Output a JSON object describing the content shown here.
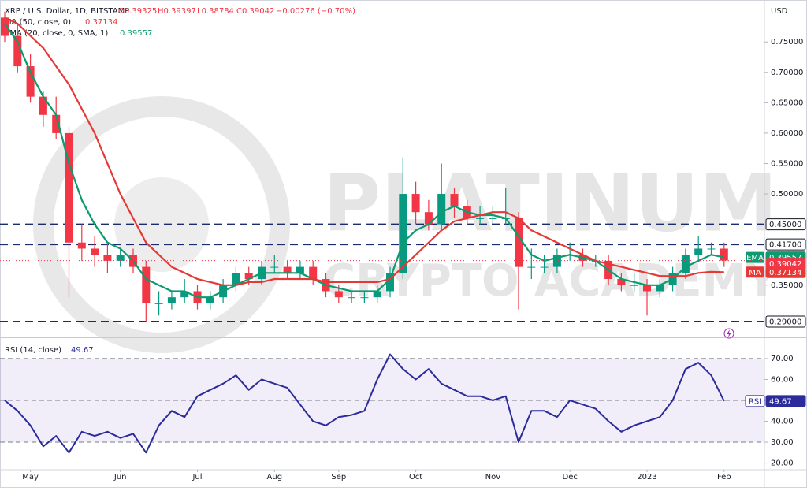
{
  "chart_data": [
    {
      "type": "candlestick",
      "title": "XRP / U.S. Dollar, 1D, BITSTAMP",
      "ohlc_legend": [
        "O0.39325",
        "H0.39397",
        "L0.38784",
        "C0.39042",
        "−0.00276 (−0.70%)"
      ],
      "currency": "USD",
      "watermark": [
        "PLATINUM",
        "CRYPTO ACADEMY"
      ],
      "categories": [
        null,
        null,
        "May",
        null,
        null,
        null,
        null,
        null,
        null,
        "Jun",
        null,
        null,
        null,
        null,
        null,
        "Jul",
        null,
        null,
        null,
        null,
        null,
        "Aug",
        null,
        null,
        null,
        null,
        "Sep",
        null,
        null,
        null,
        null,
        null,
        "Oct",
        null,
        null,
        null,
        null,
        null,
        "Nov",
        null,
        null,
        null,
        null,
        null,
        "Dec",
        null,
        null,
        null,
        null,
        null,
        "2023",
        null,
        null,
        null,
        null,
        null,
        "Feb"
      ],
      "open": [
        0.79,
        0.76,
        0.71,
        0.66,
        0.63,
        0.6,
        0.42,
        0.41,
        0.4,
        0.39,
        0.4,
        0.38,
        0.32,
        0.32,
        0.33,
        0.34,
        0.32,
        0.33,
        0.35,
        0.37,
        0.36,
        0.38,
        0.38,
        0.37,
        0.38,
        0.36,
        0.34,
        0.33,
        0.33,
        0.33,
        0.34,
        0.37,
        0.5,
        0.47,
        0.45,
        0.5,
        0.48,
        0.46,
        0.46,
        0.46,
        0.46,
        0.38,
        0.38,
        0.38,
        0.4,
        0.4,
        0.39,
        0.39,
        0.36,
        0.35,
        0.35,
        0.34,
        0.35,
        0.37,
        0.4,
        0.41,
        0.41
      ],
      "high": [
        0.8,
        0.78,
        0.73,
        0.67,
        0.66,
        0.61,
        0.45,
        0.43,
        0.42,
        0.41,
        0.41,
        0.39,
        0.34,
        0.34,
        0.36,
        0.35,
        0.34,
        0.36,
        0.38,
        0.38,
        0.39,
        0.4,
        0.39,
        0.39,
        0.39,
        0.37,
        0.35,
        0.34,
        0.34,
        0.35,
        0.38,
        0.56,
        0.52,
        0.49,
        0.55,
        0.51,
        0.49,
        0.48,
        0.48,
        0.51,
        0.47,
        0.41,
        0.4,
        0.41,
        0.42,
        0.41,
        0.4,
        0.4,
        0.37,
        0.37,
        0.36,
        0.36,
        0.38,
        0.41,
        0.43,
        0.42,
        0.42
      ],
      "low": [
        0.75,
        0.7,
        0.65,
        0.61,
        0.59,
        0.33,
        0.39,
        0.38,
        0.37,
        0.38,
        0.37,
        0.29,
        0.3,
        0.31,
        0.32,
        0.31,
        0.31,
        0.32,
        0.34,
        0.35,
        0.35,
        0.37,
        0.36,
        0.36,
        0.35,
        0.33,
        0.32,
        0.32,
        0.32,
        0.32,
        0.33,
        0.36,
        0.45,
        0.44,
        0.44,
        0.46,
        0.45,
        0.45,
        0.45,
        0.45,
        0.31,
        0.36,
        0.37,
        0.37,
        0.39,
        0.38,
        0.38,
        0.35,
        0.34,
        0.34,
        0.3,
        0.33,
        0.34,
        0.36,
        0.39,
        0.4,
        0.38
      ],
      "close": [
        0.76,
        0.71,
        0.66,
        0.63,
        0.6,
        0.42,
        0.41,
        0.4,
        0.39,
        0.4,
        0.38,
        0.32,
        0.32,
        0.33,
        0.34,
        0.32,
        0.33,
        0.35,
        0.37,
        0.36,
        0.38,
        0.38,
        0.37,
        0.38,
        0.36,
        0.34,
        0.33,
        0.33,
        0.33,
        0.34,
        0.37,
        0.5,
        0.47,
        0.45,
        0.5,
        0.48,
        0.46,
        0.46,
        0.46,
        0.46,
        0.38,
        0.38,
        0.38,
        0.4,
        0.4,
        0.39,
        0.39,
        0.36,
        0.35,
        0.35,
        0.34,
        0.35,
        0.37,
        0.4,
        0.41,
        0.41,
        0.39042
      ],
      "last_label": "0.39042",
      "up_color": "#089981",
      "down_color": "#f23645",
      "series": [
        {
          "name": "EMA",
          "legend": "EMA (20, close, 0, SMA, 1)",
          "color": "#0b9b6f",
          "last_label": "0.39557",
          "values": [
            0.78,
            0.75,
            0.7,
            0.66,
            0.63,
            0.55,
            0.49,
            0.45,
            0.42,
            0.41,
            0.39,
            0.36,
            0.35,
            0.34,
            0.34,
            0.33,
            0.33,
            0.34,
            0.35,
            0.36,
            0.37,
            0.37,
            0.37,
            0.37,
            0.36,
            0.35,
            0.345,
            0.34,
            0.34,
            0.34,
            0.36,
            0.42,
            0.44,
            0.45,
            0.47,
            0.48,
            0.47,
            0.465,
            0.465,
            0.46,
            0.43,
            0.4,
            0.39,
            0.395,
            0.4,
            0.395,
            0.39,
            0.375,
            0.36,
            0.355,
            0.35,
            0.35,
            0.36,
            0.38,
            0.39,
            0.4,
            0.39557
          ]
        },
        {
          "name": "MA",
          "legend": "MA (50, close, 0)",
          "color": "#e53935",
          "last_label": "0.37134",
          "values": [
            0.79,
            0.78,
            0.76,
            0.74,
            0.71,
            0.68,
            0.64,
            0.6,
            0.55,
            0.5,
            0.46,
            0.42,
            0.4,
            0.38,
            0.37,
            0.36,
            0.355,
            0.35,
            0.35,
            0.355,
            0.355,
            0.36,
            0.36,
            0.36,
            0.36,
            0.355,
            0.355,
            0.355,
            0.355,
            0.355,
            0.36,
            0.38,
            0.4,
            0.42,
            0.44,
            0.455,
            0.46,
            0.465,
            0.47,
            0.47,
            0.46,
            0.44,
            0.43,
            0.42,
            0.41,
            0.4,
            0.39,
            0.385,
            0.38,
            0.375,
            0.37,
            0.365,
            0.365,
            0.365,
            0.37,
            0.372,
            0.37134
          ]
        }
      ],
      "levels": [
        {
          "value": 0.45,
          "label": "0.45000"
        },
        {
          "value": 0.417,
          "label": "0.41700"
        },
        {
          "value": 0.29,
          "label": "0.29000"
        }
      ],
      "level_color": "#1c2b6e",
      "ylim": [
        0.268,
        0.819
      ],
      "yticks": [
        {
          "value": 0.75,
          "label": "0.75000"
        },
        {
          "value": 0.7,
          "label": "0.70000"
        },
        {
          "value": 0.65,
          "label": "0.65000"
        },
        {
          "value": 0.6,
          "label": "0.60000"
        },
        {
          "value": 0.55,
          "label": "0.55000"
        },
        {
          "value": 0.5,
          "label": "0.50000"
        },
        {
          "value": 0.35,
          "label": "0.35000"
        }
      ]
    },
    {
      "type": "line",
      "title": "RSI (14, close)",
      "series": [
        {
          "name": "RSI",
          "color": "#2b2b9c",
          "last_label": "49.67",
          "values": [
            50,
            45,
            38,
            28,
            33,
            25,
            35,
            33,
            35,
            32,
            34,
            25,
            38,
            45,
            42,
            52,
            55,
            58,
            62,
            55,
            60,
            58,
            56,
            48,
            40,
            38,
            42,
            43,
            45,
            60,
            72,
            65,
            60,
            65,
            58,
            55,
            52,
            52,
            50,
            52,
            30,
            45,
            45,
            42,
            50,
            48,
            46,
            40,
            35,
            38,
            40,
            42,
            50,
            65,
            68,
            62,
            49.67
          ]
        }
      ],
      "band": [
        30,
        70
      ],
      "midline": 50,
      "band_color": "#7e57c2",
      "ylim": [
        17.2,
        79.4
      ],
      "yticks": [
        {
          "value": 20,
          "label": "20.00"
        },
        {
          "value": 30,
          "label": "30.00"
        },
        {
          "value": 40,
          "label": "40.00"
        },
        {
          "value": 50,
          "label": "50.00"
        },
        {
          "value": 60,
          "label": "60.00"
        },
        {
          "value": 70,
          "label": "70.00"
        }
      ]
    }
  ]
}
